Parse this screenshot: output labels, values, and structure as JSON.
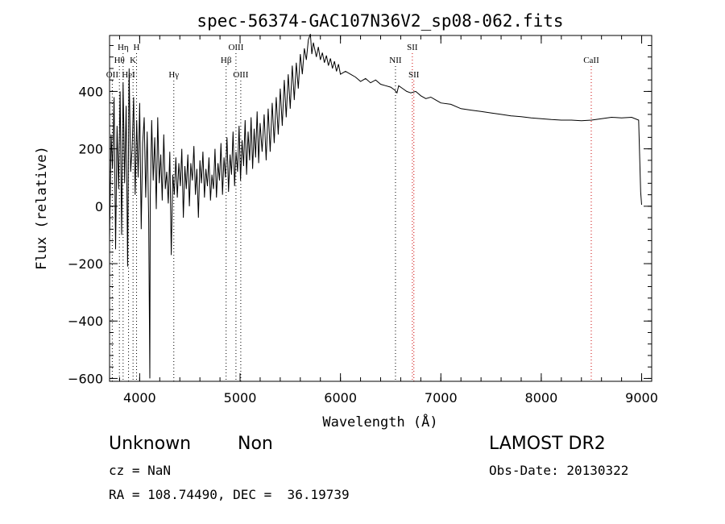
{
  "chart_data": {
    "type": "line",
    "title": "spec-56374-GAC107N36V2_sp08-062.fits",
    "xlabel": "Wavelength (Å)",
    "ylabel": "Flux (relative)",
    "xlim": [
      3700,
      9100
    ],
    "ylim": [
      -610,
      595
    ],
    "xticks": [
      4000,
      5000,
      6000,
      7000,
      8000,
      9000
    ],
    "yticks": [
      -600,
      -400,
      -200,
      0,
      200,
      400
    ],
    "xminor_step": 200,
    "yminor_step": 40,
    "series": [
      {
        "name": "flux",
        "x": [
          3700,
          3715,
          3730,
          3745,
          3760,
          3775,
          3790,
          3805,
          3820,
          3835,
          3850,
          3865,
          3880,
          3895,
          3910,
          3925,
          3940,
          3955,
          3970,
          3985,
          4000,
          4015,
          4030,
          4045,
          4060,
          4075,
          4090,
          4101,
          4105,
          4120,
          4135,
          4150,
          4165,
          4180,
          4195,
          4210,
          4225,
          4240,
          4255,
          4270,
          4285,
          4300,
          4315,
          4330,
          4345,
          4360,
          4375,
          4390,
          4405,
          4420,
          4435,
          4450,
          4465,
          4480,
          4495,
          4510,
          4525,
          4540,
          4555,
          4570,
          4585,
          4600,
          4615,
          4630,
          4645,
          4660,
          4675,
          4690,
          4705,
          4720,
          4735,
          4750,
          4765,
          4780,
          4795,
          4810,
          4825,
          4840,
          4855,
          4870,
          4885,
          4900,
          4915,
          4930,
          4945,
          4960,
          4975,
          4990,
          5005,
          5020,
          5035,
          5050,
          5065,
          5080,
          5095,
          5110,
          5125,
          5140,
          5155,
          5170,
          5185,
          5200,
          5220,
          5240,
          5260,
          5280,
          5300,
          5320,
          5340,
          5360,
          5380,
          5400,
          5420,
          5440,
          5460,
          5480,
          5500,
          5520,
          5540,
          5560,
          5580,
          5600,
          5620,
          5640,
          5660,
          5680,
          5700,
          5715,
          5730,
          5745,
          5760,
          5780,
          5800,
          5820,
          5840,
          5860,
          5880,
          5900,
          5920,
          5940,
          5960,
          5980,
          6000,
          6050,
          6100,
          6150,
          6200,
          6250,
          6300,
          6350,
          6400,
          6450,
          6500,
          6540,
          6563,
          6580,
          6620,
          6660,
          6700,
          6750,
          6800,
          6850,
          6900,
          6950,
          7000,
          7100,
          7200,
          7300,
          7400,
          7500,
          7600,
          7700,
          7800,
          7900,
          8000,
          8100,
          8200,
          8300,
          8400,
          8500,
          8600,
          8700,
          8800,
          8900,
          8970,
          8990,
          9000
        ],
        "y": [
          -120,
          250,
          130,
          380,
          -150,
          280,
          60,
          400,
          -100,
          430,
          80,
          350,
          -210,
          480,
          120,
          200,
          380,
          40,
          300,
          100,
          360,
          -80,
          220,
          310,
          30,
          260,
          -50,
          -600,
          20,
          300,
          90,
          240,
          -10,
          310,
          80,
          180,
          20,
          250,
          60,
          120,
          10,
          190,
          -170,
          110,
          40,
          170,
          30,
          150,
          70,
          200,
          -40,
          140,
          60,
          180,
          0,
          150,
          90,
          210,
          40,
          130,
          -40,
          160,
          80,
          190,
          30,
          130,
          70,
          170,
          20,
          110,
          60,
          200,
          30,
          150,
          90,
          220,
          40,
          170,
          100,
          240,
          50,
          180,
          110,
          260,
          70,
          190,
          120,
          280,
          90,
          230,
          140,
          300,
          110,
          260,
          160,
          310,
          130,
          270,
          170,
          330,
          150,
          290,
          190,
          320,
          160,
          340,
          190,
          360,
          220,
          380,
          250,
          410,
          280,
          440,
          310,
          460,
          340,
          490,
          370,
          500,
          410,
          530,
          460,
          550,
          510,
          580,
          600,
          530,
          570,
          545,
          520,
          555,
          510,
          535,
          500,
          525,
          490,
          515,
          480,
          505,
          470,
          495,
          460,
          470,
          460,
          450,
          435,
          445,
          430,
          440,
          425,
          420,
          415,
          405,
          395,
          420,
          410,
          400,
          395,
          400,
          385,
          375,
          380,
          370,
          360,
          355,
          340,
          335,
          330,
          325,
          320,
          315,
          312,
          308,
          305,
          302,
          300,
          300,
          298,
          300,
          305,
          310,
          308,
          310,
          300,
          50,
          5
        ]
      }
    ],
    "line_markers": [
      {
        "label": "OII",
        "x": 3727,
        "style": "dotted",
        "color": "#000000",
        "row": 2
      },
      {
        "label": "Hθ",
        "x": 3798,
        "style": "dotted",
        "color": "#000000",
        "row": 1
      },
      {
        "label": "Hη",
        "x": 3835,
        "style": "dotted",
        "color": "#000000",
        "row": 0
      },
      {
        "label": "HeI",
        "x": 3889,
        "style": "dotted",
        "color": "#000000",
        "row": 2
      },
      {
        "label": "K",
        "x": 3934,
        "style": "dotted",
        "color": "#000000",
        "row": 1
      },
      {
        "label": "H",
        "x": 3969,
        "style": "dotted",
        "color": "#000000",
        "row": 0
      },
      {
        "label": "Hγ",
        "x": 4340,
        "style": "dotted",
        "color": "#000000",
        "row": 2
      },
      {
        "label": "Hβ",
        "x": 4861,
        "style": "dotted",
        "color": "#000000",
        "row": 1
      },
      {
        "label": "OIII",
        "x": 4959,
        "style": "dotted",
        "color": "#000000",
        "row": 0
      },
      {
        "label": "OIII",
        "x": 5007,
        "style": "dotted",
        "color": "#000000",
        "row": 2
      },
      {
        "label": "NII",
        "x": 6548,
        "style": "dotted",
        "color": "#000000",
        "row": 1
      },
      {
        "label": "SII",
        "x": 6716,
        "style": "dotted",
        "color": "#cc0000",
        "row": 0
      },
      {
        "label": "SII",
        "x": 6731,
        "style": "dotted",
        "color": "#cc0000",
        "row": 2
      },
      {
        "label": "CaII",
        "x": 8498,
        "style": "dotted",
        "color": "#cc0000",
        "row": 1
      }
    ],
    "grid": false,
    "legend": "none"
  },
  "info": {
    "object_type": "Unknown",
    "object_class": "Non",
    "survey": "LAMOST DR2",
    "cz": "cz = NaN",
    "obs_date": "Obs-Date: 20130322",
    "ra_dec": "RA = 108.74490, DEC =  36.19739"
  },
  "colors": {
    "axis": "#000000",
    "spectrum": "#000000",
    "marker_black": "#000000",
    "marker_red": "#cc0000"
  }
}
